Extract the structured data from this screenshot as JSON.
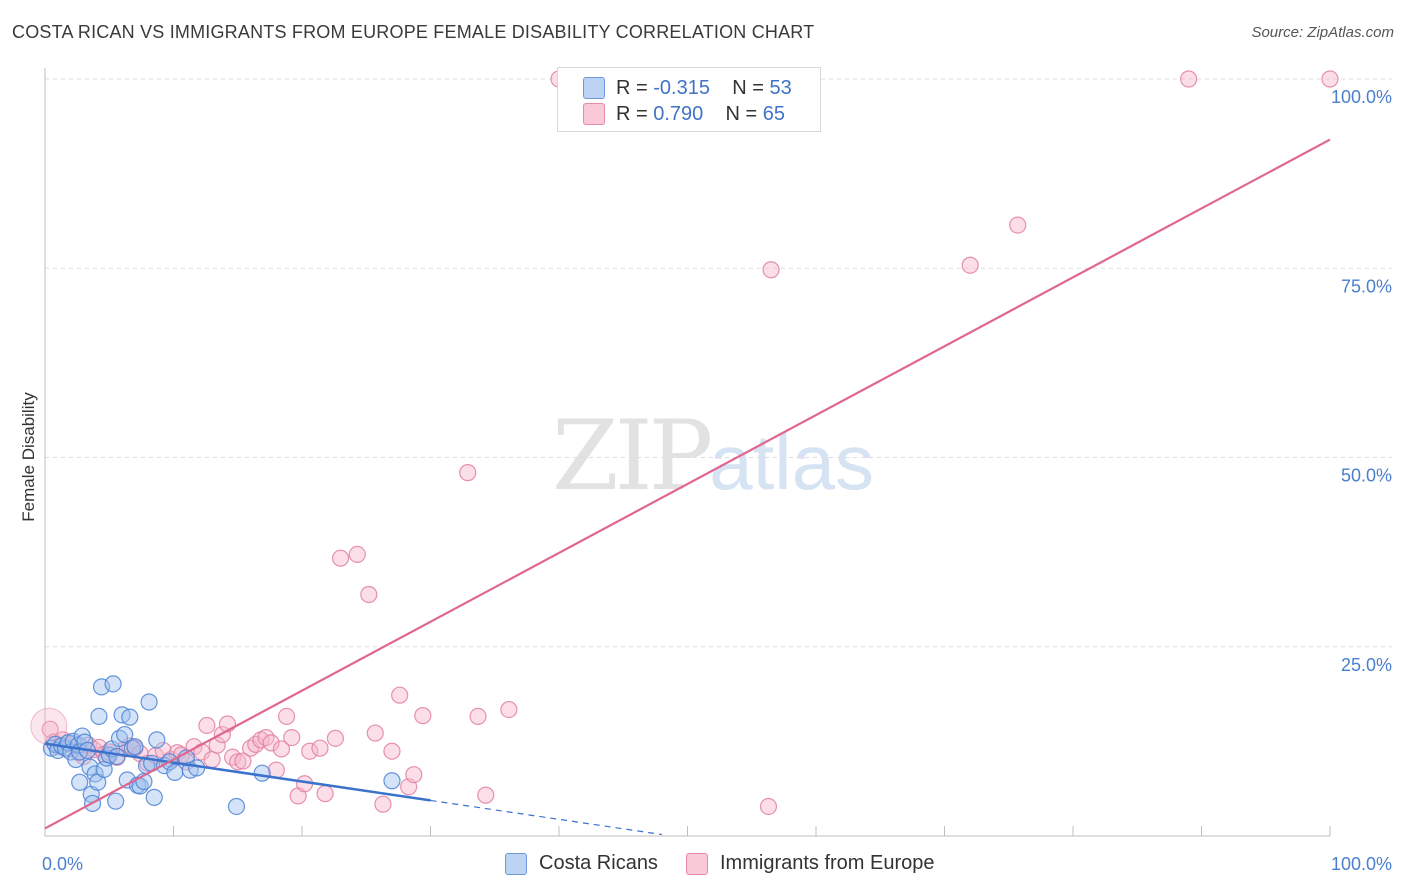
{
  "title": "COSTA RICAN VS IMMIGRANTS FROM EUROPE FEMALE DISABILITY CORRELATION CHART",
  "source": "Source: ZipAtlas.com",
  "watermark": {
    "zip": "ZIP",
    "atlas": "atlas"
  },
  "legend": {
    "rows": [
      {
        "r_label": "R = ",
        "r_value": "-0.315",
        "n_label": "N = ",
        "n_value": "53"
      },
      {
        "r_label": "R = ",
        "r_value": " 0.790",
        "n_label": "N = ",
        "n_value": "65"
      }
    ]
  },
  "bottom_legend": {
    "series_a": "Costa Ricans",
    "series_b": "Immigrants from Europe"
  },
  "colors": {
    "blue_fill": "#9fc0ee",
    "blue_stroke": "#4a82d6",
    "blue_line": "#3a72cc",
    "pink_fill": "#f6b6cb",
    "pink_stroke": "#e27fa0",
    "pink_line": "#e0668f",
    "grid": "#dddddd",
    "tick_text": "#4a7fd0"
  },
  "chart_data": {
    "type": "scatter",
    "title": "COSTA RICAN VS IMMIGRANTS FROM EUROPE FEMALE DISABILITY CORRELATION CHART",
    "xlabel": "",
    "ylabel": "Female Disability",
    "xlim": [
      0,
      100
    ],
    "ylim": [
      0,
      100
    ],
    "x_tick_labels": [
      "0.0%",
      "100.0%"
    ],
    "y_ticks": [
      25,
      50,
      75,
      100
    ],
    "y_tick_labels": [
      "25.0%",
      "50.0%",
      "75.0%",
      "100.0%"
    ],
    "grid": true,
    "series": [
      {
        "name": "Costa Ricans",
        "R": -0.315,
        "N": 53,
        "trend": {
          "x0": 0,
          "y0": 12.2,
          "x1": 30,
          "y1": 4.7,
          "dash_to_x": 48
        },
        "points": [
          [
            0.5,
            11.6
          ],
          [
            0.8,
            12.1
          ],
          [
            1.0,
            11.3
          ],
          [
            1.3,
            11.9
          ],
          [
            1.6,
            11.6
          ],
          [
            1.8,
            12.3
          ],
          [
            2.0,
            11.1
          ],
          [
            2.2,
            12.5
          ],
          [
            2.4,
            10.1
          ],
          [
            2.6,
            12.0
          ],
          [
            2.7,
            11.1
          ],
          [
            2.9,
            13.2
          ],
          [
            3.1,
            12.4
          ],
          [
            2.7,
            7.1
          ],
          [
            3.3,
            11.3
          ],
          [
            3.5,
            9.1
          ],
          [
            3.6,
            5.5
          ],
          [
            3.7,
            4.3
          ],
          [
            3.9,
            8.2
          ],
          [
            4.1,
            7.1
          ],
          [
            4.2,
            15.8
          ],
          [
            4.4,
            19.7
          ],
          [
            4.6,
            8.8
          ],
          [
            4.8,
            10.3
          ],
          [
            5.0,
            10.7
          ],
          [
            5.2,
            11.5
          ],
          [
            5.3,
            20.1
          ],
          [
            5.5,
            4.6
          ],
          [
            5.6,
            10.5
          ],
          [
            5.8,
            12.9
          ],
          [
            6.0,
            16.0
          ],
          [
            6.2,
            13.4
          ],
          [
            6.4,
            7.4
          ],
          [
            6.6,
            15.7
          ],
          [
            6.8,
            11.6
          ],
          [
            7.0,
            11.8
          ],
          [
            7.2,
            6.7
          ],
          [
            7.4,
            6.6
          ],
          [
            7.7,
            7.2
          ],
          [
            7.9,
            9.3
          ],
          [
            8.1,
            17.7
          ],
          [
            8.3,
            9.6
          ],
          [
            8.5,
            5.1
          ],
          [
            8.7,
            12.7
          ],
          [
            9.3,
            9.3
          ],
          [
            9.7,
            9.8
          ],
          [
            10.1,
            8.4
          ],
          [
            11.0,
            10.3
          ],
          [
            11.3,
            8.7
          ],
          [
            11.8,
            9.0
          ],
          [
            14.9,
            3.9
          ],
          [
            16.9,
            8.3
          ],
          [
            27.0,
            7.3
          ]
        ]
      },
      {
        "name": "Immigrants from Europe",
        "R": 0.79,
        "N": 65,
        "trend": {
          "x0": 0,
          "y0": 1.0,
          "x1": 100,
          "y1": 92.0
        },
        "points": [
          [
            0.4,
            14.1
          ],
          [
            0.7,
            12.4
          ],
          [
            1.0,
            11.8
          ],
          [
            1.4,
            12.7
          ],
          [
            1.8,
            11.5
          ],
          [
            2.2,
            12.2
          ],
          [
            2.6,
            11.0
          ],
          [
            3.0,
            10.5
          ],
          [
            3.4,
            12.0
          ],
          [
            3.8,
            11.4
          ],
          [
            4.2,
            11.7
          ],
          [
            4.6,
            10.8
          ],
          [
            5.0,
            11.1
          ],
          [
            5.6,
            10.4
          ],
          [
            6.2,
            11.5
          ],
          [
            6.6,
            11.9
          ],
          [
            7.0,
            11.6
          ],
          [
            7.4,
            10.9
          ],
          [
            8.0,
            9.6
          ],
          [
            8.6,
            10.6
          ],
          [
            9.2,
            11.3
          ],
          [
            9.8,
            10.1
          ],
          [
            10.3,
            11.0
          ],
          [
            10.6,
            10.7
          ],
          [
            11.0,
            9.8
          ],
          [
            11.6,
            11.8
          ],
          [
            12.2,
            11.1
          ],
          [
            12.6,
            14.6
          ],
          [
            13.0,
            10.1
          ],
          [
            13.4,
            12.0
          ],
          [
            13.8,
            13.4
          ],
          [
            14.2,
            14.8
          ],
          [
            14.6,
            10.4
          ],
          [
            15.0,
            9.8
          ],
          [
            15.4,
            9.9
          ],
          [
            16.0,
            11.6
          ],
          [
            16.4,
            12.1
          ],
          [
            16.8,
            12.7
          ],
          [
            17.2,
            13.0
          ],
          [
            17.6,
            12.3
          ],
          [
            18.0,
            8.7
          ],
          [
            18.4,
            11.5
          ],
          [
            18.8,
            15.8
          ],
          [
            19.2,
            13.0
          ],
          [
            19.7,
            5.3
          ],
          [
            20.2,
            6.9
          ],
          [
            20.6,
            11.2
          ],
          [
            21.4,
            11.6
          ],
          [
            21.8,
            5.6
          ],
          [
            22.6,
            12.9
          ],
          [
            23.0,
            36.7
          ],
          [
            25.2,
            31.9
          ],
          [
            24.3,
            37.2
          ],
          [
            25.7,
            13.6
          ],
          [
            26.3,
            4.2
          ],
          [
            27.0,
            11.2
          ],
          [
            27.6,
            18.6
          ],
          [
            28.3,
            6.5
          ],
          [
            28.7,
            8.1
          ],
          [
            29.4,
            15.9
          ],
          [
            32.9,
            48.0
          ],
          [
            33.7,
            15.8
          ],
          [
            34.3,
            5.4
          ],
          [
            36.1,
            16.7
          ],
          [
            56.3,
            3.9
          ]
        ],
        "outliers_top": [
          [
            40.0,
            100
          ],
          [
            89.0,
            100
          ],
          [
            100.0,
            100
          ]
        ],
        "outliers_high": [
          [
            56.5,
            74.8
          ],
          [
            72.0,
            75.4
          ],
          [
            75.7,
            80.7
          ]
        ]
      }
    ]
  }
}
